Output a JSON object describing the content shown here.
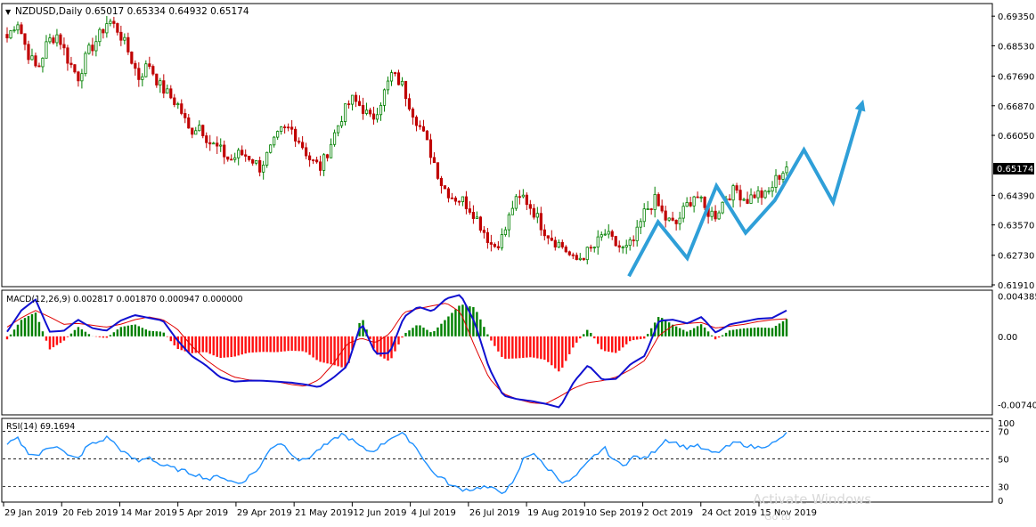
{
  "symbol_header": {
    "arrow": "▼",
    "text": "NZDUSD,Daily  0.65017 0.65334 0.64932 0.65174"
  },
  "price_tag": "0.65174",
  "watermark": {
    "line1": "Activate Windows",
    "line2": "Go to"
  },
  "colors": {
    "bull": "#008000",
    "bear": "#c00000",
    "projection": "#2f9fd8",
    "macd_main": "#1010d0",
    "macd_signal": "#e00000",
    "rsi": "#1e90ff"
  },
  "chart_data": [
    {
      "type": "candlestick",
      "panel": "price",
      "ylim": [
        0.6191,
        0.6965
      ],
      "y_ticks": [
        "0.69350",
        "0.68530",
        "0.67690",
        "0.66870",
        "0.66050",
        "0.65174",
        "0.64390",
        "0.63570",
        "0.62730",
        "0.61910"
      ],
      "x_tick_labels": [
        "29 Jan 2019",
        "20 Feb 2019",
        "14 Mar 2019",
        "5 Apr 2019",
        "29 Apr 2019",
        "21 May 2019",
        "12 Jun 2019",
        "4 Jul 2019",
        "26 Jul 2019",
        "19 Aug 2019",
        "10 Sep 2019",
        "2 Oct 2019",
        "24 Oct 2019",
        "15 Nov 2019"
      ],
      "close_path": [
        0.6875,
        0.6925,
        0.6835,
        0.6785,
        0.6865,
        0.6885,
        0.6815,
        0.6765,
        0.6835,
        0.6875,
        0.6925,
        0.6895,
        0.6835,
        0.6765,
        0.6805,
        0.6745,
        0.6715,
        0.6685,
        0.6615,
        0.6635,
        0.6585,
        0.6565,
        0.6535,
        0.6555,
        0.6545,
        0.6515,
        0.6565,
        0.6615,
        0.6625,
        0.6585,
        0.6535,
        0.6515,
        0.6585,
        0.6655,
        0.6705,
        0.6685,
        0.6645,
        0.6705,
        0.6775,
        0.6745,
        0.6675,
        0.6615,
        0.6545,
        0.6465,
        0.6435,
        0.6425,
        0.6395,
        0.6345,
        0.6295,
        0.6325,
        0.6415,
        0.6435,
        0.6395,
        0.6345,
        0.6315,
        0.6295,
        0.6255,
        0.6275,
        0.6295,
        0.6335,
        0.6305,
        0.6285,
        0.6315,
        0.6395,
        0.6425,
        0.6375,
        0.6355,
        0.6405,
        0.6445,
        0.6395,
        0.6385,
        0.6435,
        0.6455,
        0.6425,
        0.6445,
        0.6435,
        0.6485,
        0.6517
      ],
      "projection": {
        "from_x": 0.6215,
        "points": [
          0.6215,
          0.6365,
          0.6265,
          0.6465,
          0.6335,
          0.6425,
          0.6565,
          0.642,
          0.6695
        ]
      },
      "last": {
        "open": 0.65017,
        "high": 0.65334,
        "low": 0.64932,
        "close": 0.65174
      }
    },
    {
      "type": "histogram+lines",
      "panel": "macd",
      "title": "MACD(12,26,9) 0.002817 0.001870 0.000947 0.000000",
      "ylim": [
        -0.0083,
        0.0048
      ],
      "y_ticks": [
        "0.004385",
        "0.00",
        "-0.007404"
      ],
      "main_path": [
        0.0005,
        0.0028,
        0.004,
        0.0005,
        0.0006,
        0.0018,
        0.0009,
        0.0006,
        0.0017,
        0.0023,
        0.002,
        0.0017,
        -0.0004,
        -0.0021,
        -0.0031,
        -0.0044,
        -0.0049,
        -0.0048,
        -0.0048,
        -0.0049,
        -0.005,
        -0.0052,
        -0.0055,
        -0.0045,
        -0.0032,
        0.0015,
        -0.0019,
        -0.0018,
        0.0021,
        0.0032,
        0.0027,
        0.0041,
        0.0045,
        0.0015,
        -0.0034,
        -0.0064,
        -0.0068,
        -0.007,
        -0.0073,
        -0.0077,
        -0.0049,
        -0.0031,
        -0.0047,
        -0.0046,
        -0.003,
        -0.0021,
        0.0017,
        0.0018,
        0.0014,
        0.0021,
        0.0004,
        0.0013,
        0.0016,
        0.0019,
        0.002,
        0.0028
      ],
      "signal_path": [
        0.001,
        0.002,
        0.0028,
        0.0021,
        0.0013,
        0.0014,
        0.0012,
        0.001,
        0.0013,
        0.0018,
        0.0021,
        0.0018,
        0.0008,
        -0.001,
        -0.0025,
        -0.0036,
        -0.0044,
        -0.0047,
        -0.0048,
        -0.0049,
        -0.0052,
        -0.0054,
        -0.0047,
        -0.003,
        -0.0008,
        -0.0002,
        -0.0007,
        0.0003,
        0.0026,
        0.003,
        0.0033,
        0.0036,
        0.0026,
        -0.0011,
        -0.0045,
        -0.0062,
        -0.0068,
        -0.0072,
        -0.0073,
        -0.0065,
        -0.0056,
        -0.005,
        -0.0048,
        -0.0044,
        -0.0036,
        -0.0026,
        0.0001,
        0.0012,
        0.0014,
        0.0015,
        0.0009,
        0.0011,
        0.0013,
        0.0016,
        0.0018,
        0.0019
      ]
    },
    {
      "type": "line",
      "panel": "rsi",
      "title": "RSI(14) 69.1694",
      "ylim": [
        20,
        78
      ],
      "y_ticks": [
        "70",
        "50",
        "30"
      ],
      "levels": [
        70,
        50,
        30
      ],
      "values": [
        60,
        65,
        55,
        52,
        58,
        60,
        52,
        50,
        60,
        62,
        66,
        58,
        52,
        48,
        52,
        46,
        44,
        42,
        40,
        38,
        35,
        38,
        34,
        32,
        38,
        44,
        58,
        62,
        55,
        48,
        52,
        58,
        62,
        68,
        64,
        58,
        55,
        60,
        66,
        68,
        62,
        52,
        40,
        36,
        30,
        28,
        28,
        30,
        28,
        26,
        32,
        50,
        55,
        45,
        40,
        32,
        36,
        44,
        52,
        58,
        48,
        46,
        52,
        50,
        56,
        64,
        62,
        58,
        60,
        56,
        54,
        58,
        62,
        60,
        58,
        60,
        62,
        69
      ]
    }
  ]
}
